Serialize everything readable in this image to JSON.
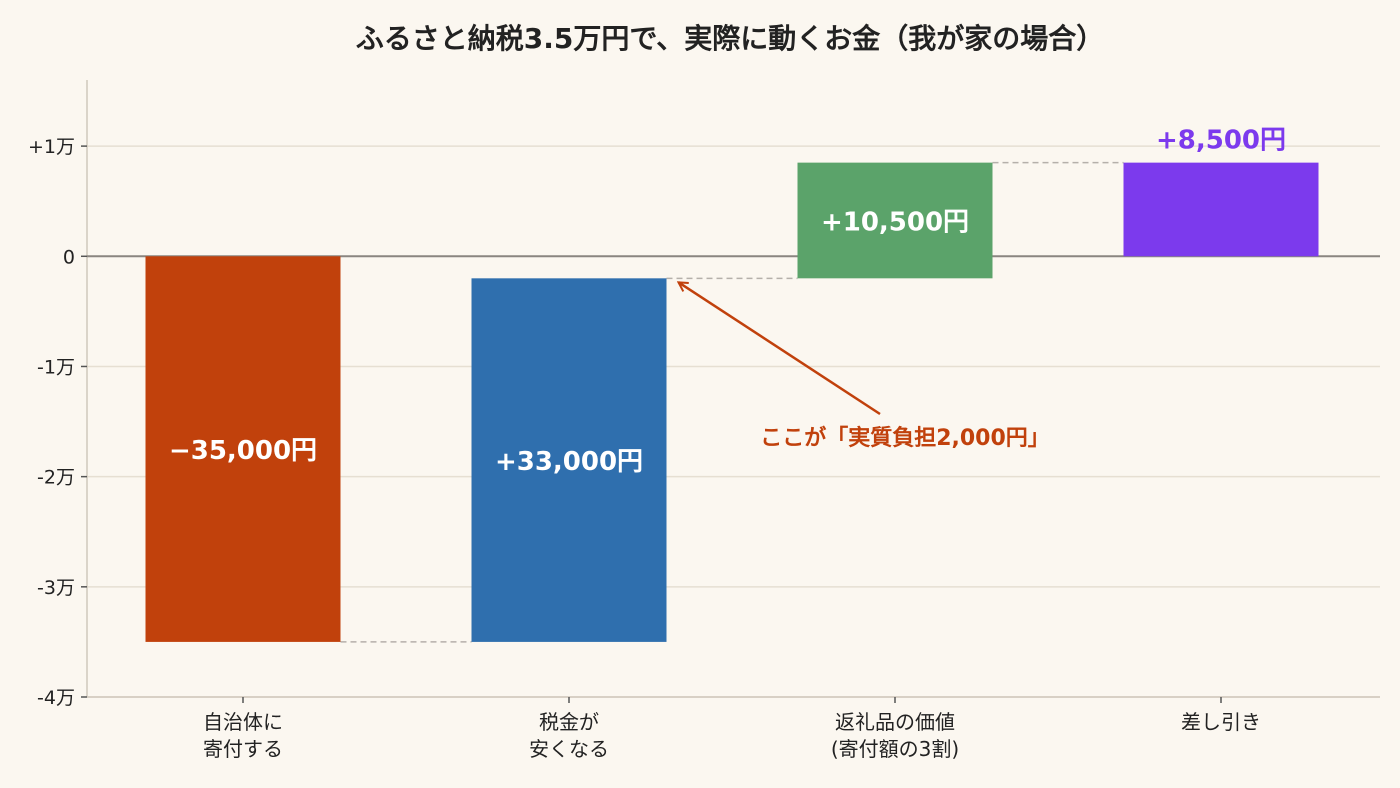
{
  "chart_data": {
    "type": "waterfall",
    "title": "ふるさと納税3.5万円で、実際に動くお金（我が家の場合）",
    "categories": [
      [
        "自治体に",
        "寄付する"
      ],
      [
        "税金が",
        "安くなる"
      ],
      [
        "返礼品の価値",
        "(寄付額の3割)"
      ],
      [
        "差し引き"
      ]
    ],
    "values": [
      -35000,
      33000,
      10500,
      8500
    ],
    "bar_labels": [
      "−35,000円",
      "+33,000円",
      "+10,500円",
      "+8,500円"
    ],
    "is_total": [
      false,
      false,
      false,
      true
    ],
    "colors": [
      "#c1410c",
      "#2f6fae",
      "#5ba36a",
      "#7c3aed"
    ],
    "ylim": [
      -40000,
      16000
    ],
    "yticks": [
      -40000,
      -30000,
      -20000,
      -10000,
      0,
      10000
    ],
    "ytick_labels": [
      "-4万",
      "-3万",
      "-2万",
      "-1万",
      "0",
      "+1万"
    ],
    "grid": true,
    "annotation": {
      "text": "ここが「実質負担2,000円」",
      "color": "#c1410c",
      "points_to_value": -2000
    }
  }
}
